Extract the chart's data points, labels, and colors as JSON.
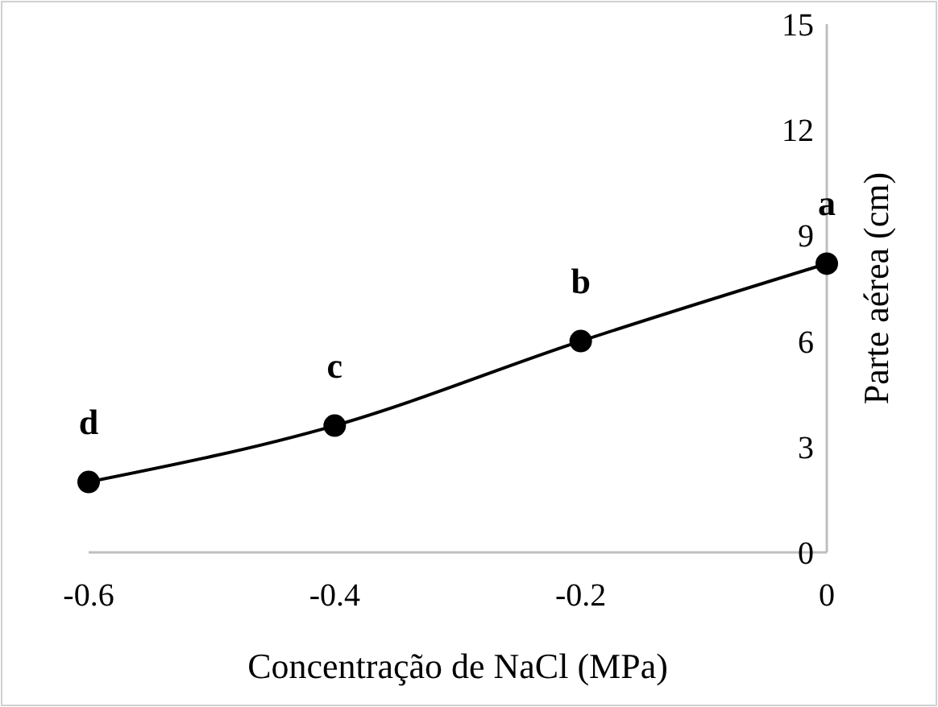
{
  "chart_data": {
    "type": "line",
    "xlabel": "Concentração de NaCl (MPa)",
    "ylabel": "Parte aérea (cm)",
    "x": [
      -0.6,
      -0.4,
      -0.2,
      0
    ],
    "series": [
      {
        "color": "#000000",
        "values": [
          2.0,
          3.6,
          6.0,
          8.2
        ]
      }
    ],
    "xlim": [
      -0.6,
      0
    ],
    "xticks": [
      -0.6,
      -0.4,
      -0.2,
      0
    ],
    "ylim": [
      0,
      15
    ],
    "yticks": [
      0,
      3,
      6,
      9,
      12,
      15
    ],
    "marker": "circle",
    "line_style": "solid",
    "annotations": [
      {
        "text": "d",
        "x": -0.6,
        "y": 2.0
      },
      {
        "text": "c",
        "x": -0.4,
        "y": 3.6
      },
      {
        "text": "b",
        "x": -0.2,
        "y": 6.0
      },
      {
        "text": "a",
        "x": 0,
        "y": 8.2
      }
    ]
  }
}
